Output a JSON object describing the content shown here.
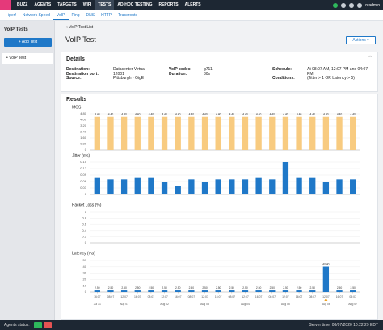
{
  "nav": {
    "items": [
      "BUZZ",
      "AGENTS",
      "TARGETS",
      "WIFI",
      "TESTS",
      "AD-HOC TESTING",
      "REPORTS",
      "ALERTS"
    ],
    "user": "ntadmin"
  },
  "subnav": [
    "iperf",
    "Network Speed",
    "VoIP",
    "Ping",
    "DNS",
    "HTTP",
    "Traceroute"
  ],
  "sidebar": {
    "title": "VoIP Tests",
    "add": "+ Add Test",
    "item": "VoIP Test"
  },
  "page": {
    "back": "VoIP Test List",
    "title": "VoIP Test",
    "actions": "Actions"
  },
  "details": {
    "title": "Details",
    "columns": [
      [
        {
          "label": "Destination:",
          "value": "Datacenter Virtual"
        },
        {
          "label": "Destination port:",
          "value": "12001"
        },
        {
          "label": "Source:",
          "value": "Pittsburgh - GigE"
        }
      ],
      [
        {
          "label": "VoIP codec:",
          "value": "g711"
        },
        {
          "label": "Duration:",
          "value": "30s"
        }
      ],
      [
        {
          "label": "Schedule:",
          "value": "At 08:07 AM, 12:07 PM and 04:07 PM"
        },
        {
          "label": "Conditions:",
          "value": "(Jitter > 1 OR Latency > 5)"
        }
      ]
    ]
  },
  "results": {
    "title": "Results"
  },
  "chart_data": [
    {
      "type": "bar",
      "title": "MOS",
      "color": "#f8cb80",
      "values": [
        4.4,
        4.4,
        4.4,
        4.4,
        4.4,
        4.4,
        4.4,
        4.4,
        4.4,
        4.4,
        4.4,
        4.4,
        4.4,
        4.4,
        4.4,
        4.4,
        4.4,
        4.4,
        4.4,
        4.4
      ],
      "value_labels": [
        "4.40",
        "4.40",
        "4.40",
        "4.40",
        "4.40",
        "4.40",
        "4.40",
        "4.40",
        "4.40",
        "4.40",
        "4.40",
        "4.40",
        "4.40",
        "4.40",
        "4.40",
        "4.40",
        "4.40",
        "4.40",
        "4.40",
        "4.40"
      ],
      "ylim": [
        0,
        4.8
      ],
      "yticks": [
        0,
        {
          "value": 0.8,
          "label": "0.80"
        },
        {
          "value": 1.6,
          "label": "1.60"
        },
        {
          "value": 2.4,
          "label": "2.40"
        },
        {
          "value": 3.2,
          "label": "3.20"
        },
        {
          "value": 4,
          "label": "4.00"
        },
        {
          "value": 4.8,
          "label": "4.80"
        }
      ]
    },
    {
      "type": "bar",
      "title": "Jitter (ms)",
      "color": "#1f78c8",
      "values": [
        0.08,
        0.07,
        0.07,
        0.08,
        0.08,
        0.06,
        0.04,
        0.07,
        0.06,
        0.07,
        0.07,
        0.07,
        0.08,
        0.07,
        0.15,
        0.08,
        0.08,
        0.06,
        0.07,
        0.07
      ],
      "ylim": [
        0,
        0.15
      ],
      "yticks": [
        0,
        0.03,
        0.06,
        0.09,
        0.12,
        0.15
      ]
    },
    {
      "type": "bar",
      "title": "Packet Loss (%)",
      "color": "#1f78c8",
      "values": [
        0,
        0,
        0,
        0,
        0,
        0,
        0,
        0,
        0,
        0,
        0,
        0,
        0,
        0,
        0,
        0,
        0,
        0,
        0,
        0
      ],
      "ylim": [
        0,
        1
      ],
      "yticks": [
        0,
        0.2,
        0.4,
        0.6,
        0.8,
        1
      ]
    },
    {
      "type": "bar",
      "title": "Latency (ms)",
      "color": "#1f78c8",
      "values": [
        2.5,
        2.5,
        2.5,
        2.5,
        2.5,
        2.5,
        2.5,
        2.5,
        2.5,
        2.5,
        2.5,
        2.5,
        2.5,
        2.5,
        2.5,
        2.5,
        2.5,
        40.4,
        2.5,
        2.5
      ],
      "value_labels": [
        "2.50",
        "2.50",
        "2.50",
        "2.50",
        "2.50",
        "2.50",
        "2.50",
        "2.50",
        "2.50",
        "2.50",
        "2.50",
        "2.50",
        "2.50",
        "2.50",
        "2.50",
        "2.50",
        "2.50",
        "40.40",
        "2.50",
        "2.50"
      ],
      "ylim": [
        0,
        50
      ],
      "yticks": [
        0,
        10,
        20,
        30,
        40,
        50
      ],
      "categories": [
        "16:07",
        "08:07",
        "12:07",
        "16:07",
        "08:07",
        "12:07",
        "16:07",
        "08:07",
        "12:07",
        "16:07",
        "08:07",
        "12:07",
        "16:07",
        "08:07",
        "12:07",
        "16:07",
        "08:07",
        "12:07",
        "16:07",
        "08:07"
      ],
      "dates": [
        "Jul 31",
        "Aug 01",
        "Aug 02",
        "Aug 03",
        "Aug 04",
        "Aug 05",
        "Aug 06",
        "Aug 07"
      ]
    }
  ],
  "footer": {
    "agents": "Agents status:",
    "server": "Server time: 08/07/2020 10:22:29 EDT"
  }
}
